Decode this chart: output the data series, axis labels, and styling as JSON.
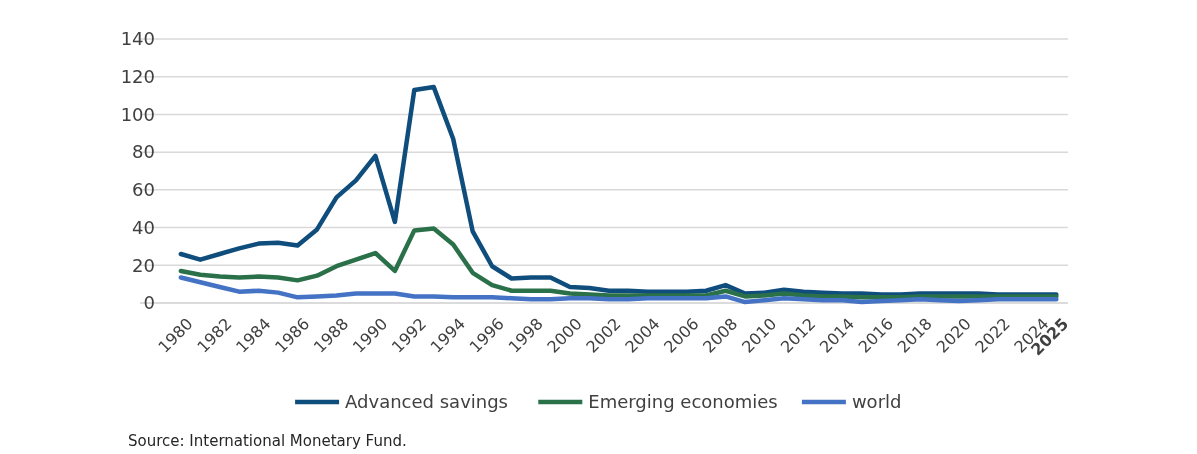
{
  "chart_data": {
    "type": "line",
    "x": [
      1980,
      1981,
      1982,
      1983,
      1984,
      1985,
      1986,
      1987,
      1988,
      1989,
      1990,
      1991,
      1992,
      1993,
      1994,
      1995,
      1996,
      1997,
      1998,
      1999,
      2000,
      2001,
      2002,
      2003,
      2004,
      2005,
      2006,
      2007,
      2008,
      2009,
      2010,
      2011,
      2012,
      2013,
      2014,
      2015,
      2016,
      2017,
      2018,
      2019,
      2020,
      2021,
      2022,
      2023,
      2024,
      2025
    ],
    "series": [
      {
        "name": "Advanced savings",
        "color": "#0e4d7c",
        "values": [
          26,
          23,
          26,
          29,
          31.5,
          32,
          30.5,
          39,
          56,
          65,
          78,
          43,
          113,
          114.5,
          87,
          38,
          19.5,
          13,
          13.5,
          13.5,
          8.5,
          8,
          6.5,
          6.5,
          6,
          6,
          6,
          6.5,
          9.5,
          5,
          5.5,
          7,
          6,
          5.5,
          5,
          5,
          4.5,
          4.5,
          5,
          5,
          5,
          5,
          4.5,
          4.5,
          4.5,
          4.5
        ]
      },
      {
        "name": "Emerging economies",
        "color": "#2a7049",
        "values": [
          17,
          15,
          14,
          13.5,
          14,
          13.5,
          12,
          14.5,
          19.5,
          23,
          26.5,
          17,
          38.5,
          39.5,
          31,
          16,
          9.5,
          6.5,
          6.5,
          6.5,
          5,
          4.5,
          4,
          4,
          4,
          4,
          4,
          4,
          6.5,
          3.5,
          4,
          5,
          4,
          3.5,
          3.5,
          3,
          3,
          3,
          3.5,
          3.5,
          3.5,
          3.5,
          3.5,
          3.5,
          3.5,
          3.5
        ]
      },
      {
        "name": "world",
        "color": "#4472c4",
        "values": [
          13.5,
          11,
          8.5,
          6,
          6.5,
          5.5,
          3,
          3.5,
          4,
          5,
          5,
          5,
          3.5,
          3.5,
          3,
          3,
          3,
          2.5,
          2,
          2,
          2.5,
          2.5,
          2,
          2,
          2.5,
          2.5,
          2.5,
          2.5,
          3.5,
          0.5,
          1.5,
          2.5,
          2,
          1.5,
          1.5,
          0.5,
          1,
          1.5,
          2,
          1.5,
          1,
          1.5,
          2,
          2,
          2,
          2
        ]
      }
    ],
    "xlim": [
      1977.9,
      2025.6
    ],
    "xticks": [
      1980,
      1982,
      1984,
      1986,
      1988,
      1990,
      1992,
      1994,
      1996,
      1998,
      2000,
      2002,
      2004,
      2006,
      2008,
      2010,
      2012,
      2014,
      2016,
      2018,
      2020,
      2022,
      2024,
      2025
    ],
    "ylim": [
      0,
      140
    ],
    "yticks": [
      0,
      20,
      40,
      60,
      80,
      100,
      120,
      140
    ],
    "grid": "y",
    "legend": "bottom",
    "marker": "none",
    "line_style": "solid",
    "annotations": [
      "Source: International Monetary Fund."
    ]
  }
}
